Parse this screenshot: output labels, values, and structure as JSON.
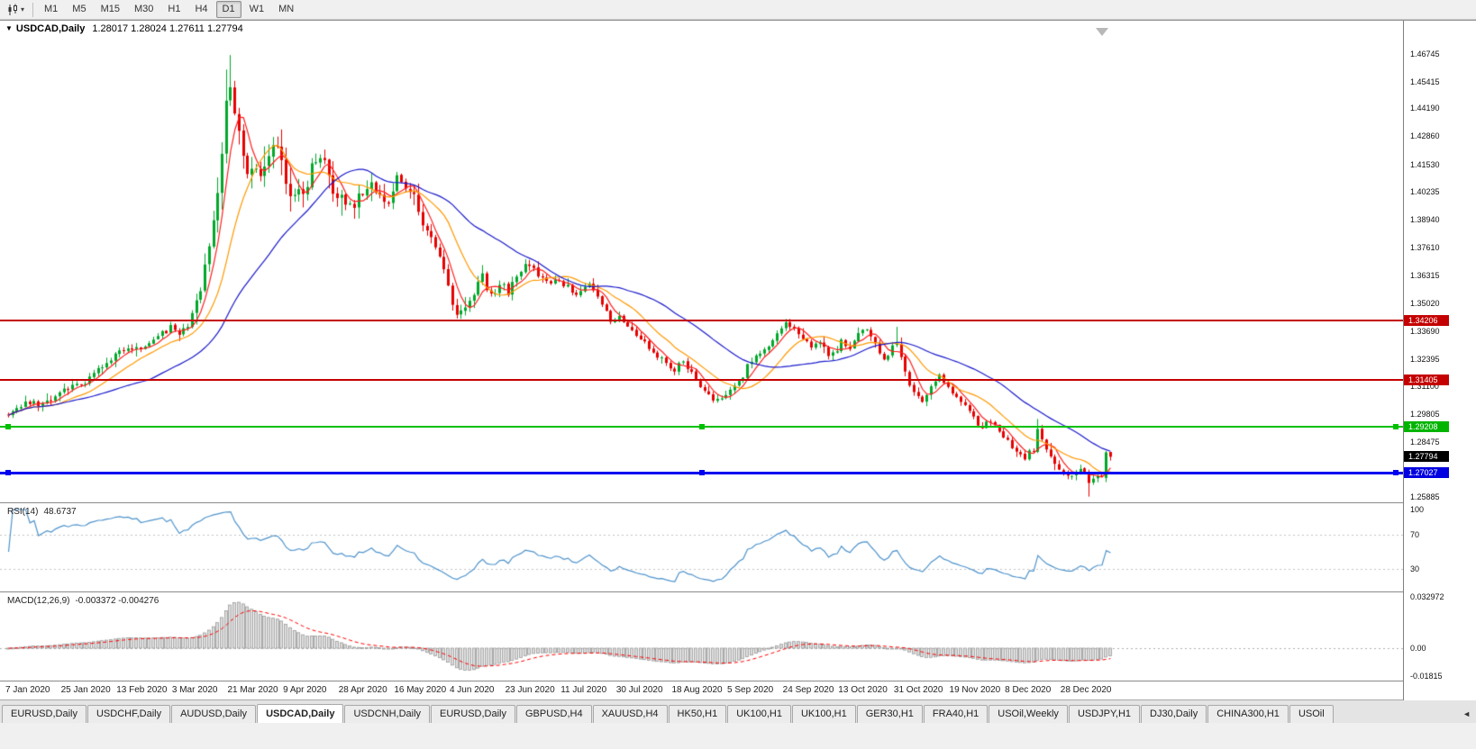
{
  "toolbar": {
    "dropdown_caret": "▾",
    "timeframes": [
      {
        "label": "M1",
        "active": false
      },
      {
        "label": "M5",
        "active": false
      },
      {
        "label": "M15",
        "active": false
      },
      {
        "label": "M30",
        "active": false
      },
      {
        "label": "H1",
        "active": false
      },
      {
        "label": "H4",
        "active": false
      },
      {
        "label": "D1",
        "active": true
      },
      {
        "label": "W1",
        "active": false
      },
      {
        "label": "MN",
        "active": false
      }
    ]
  },
  "window": {
    "title": "USDCAD,Daily",
    "ohlc": "1.28017 1.28024 1.27611 1.27794",
    "expand_glyph": "▼"
  },
  "price_scale": {
    "labels": [
      [
        "1.46745",
        1.46745
      ],
      [
        "1.45415",
        1.45415
      ],
      [
        "1.44190",
        1.4419
      ],
      [
        "1.42860",
        1.4286
      ],
      [
        "1.41530",
        1.4153
      ],
      [
        "1.40235",
        1.40235
      ],
      [
        "1.38940",
        1.3894
      ],
      [
        "1.37610",
        1.3761
      ],
      [
        "1.36315",
        1.36315
      ],
      [
        "1.35020",
        1.3502
      ],
      [
        "1.33690",
        1.3369
      ],
      [
        "1.32395",
        1.32395
      ],
      [
        "1.31100",
        1.311
      ],
      [
        "1.29805",
        1.29805
      ],
      [
        "1.28475",
        1.28475
      ],
      [
        "1.25885",
        1.25885
      ]
    ]
  },
  "tags": [
    {
      "text": "1.34206",
      "price": 1.34206,
      "bg": "#c40000"
    },
    {
      "text": "1.31405",
      "price": 1.31405,
      "bg": "#c40000"
    },
    {
      "text": "1.29208",
      "price": 1.29208,
      "bg": "#00b400"
    },
    {
      "text": "1.27794",
      "price": 1.27794,
      "bg": "#000000"
    },
    {
      "text": "1.27027",
      "price": 1.27027,
      "bg": "#0000e0"
    }
  ],
  "hlines": [
    {
      "price": 1.34206,
      "color": "#c40000",
      "w": 2,
      "handles": false
    },
    {
      "price": 1.31405,
      "color": "#c40000",
      "w": 2,
      "handles": false
    },
    {
      "price": 1.29208,
      "color": "#00c000",
      "w": 2,
      "handles": true
    },
    {
      "price": 1.27027,
      "color": "#0000f0",
      "w": 3,
      "handles": true
    }
  ],
  "rsi": {
    "name": "RSI(14)",
    "value": "48.6737",
    "color": "#4f94cd",
    "scale": [
      [
        "100",
        100
      ],
      [
        "70",
        70
      ],
      [
        "30",
        30
      ]
    ],
    "levels": [
      70,
      30
    ]
  },
  "macd": {
    "name": "MACD(12,26,9)",
    "values": "-0.003372 -0.004276",
    "scale": [
      [
        "0.032972",
        0.032972
      ],
      [
        "0.00",
        0
      ],
      [
        "-0.01815",
        -0.01815
      ]
    ]
  },
  "tabs": {
    "scroll_left_glyph": "◄",
    "items": [
      {
        "label": "EURUSD,Daily",
        "active": false
      },
      {
        "label": "USDCHF,Daily",
        "active": false
      },
      {
        "label": "AUDUSD,Daily",
        "active": false
      },
      {
        "label": "USDCAD,Daily",
        "active": true
      },
      {
        "label": "USDCNH,Daily",
        "active": false
      },
      {
        "label": "EURUSD,Daily",
        "active": false
      },
      {
        "label": "GBPUSD,H4",
        "active": false
      },
      {
        "label": "XAUUSD,H4",
        "active": false
      },
      {
        "label": "HK50,H1",
        "active": false
      },
      {
        "label": "UK100,H1",
        "active": false
      },
      {
        "label": "UK100,H1",
        "active": false
      },
      {
        "label": "GER30,H1",
        "active": false
      },
      {
        "label": "FRA40,H1",
        "active": false
      },
      {
        "label": "USOil,Weekly",
        "active": false
      },
      {
        "label": "USDJPY,H1",
        "active": false
      },
      {
        "label": "DJ30,Daily",
        "active": false
      },
      {
        "label": "CHINA300,H1",
        "active": false
      },
      {
        "label": "USOil",
        "active": false
      }
    ]
  },
  "chart_data": {
    "type": "candlestick",
    "symbol": "USDCAD",
    "timeframe": "Daily",
    "bars": 259,
    "y_range": [
      1.2565,
      1.4745
    ],
    "x_dates": [
      "7 Jan 2020",
      "25 Jan 2020",
      "13 Feb 2020",
      "3 Mar 2020",
      "21 Mar 2020",
      "9 Apr 2020",
      "28 Apr 2020",
      "16 May 2020",
      "4 Jun 2020",
      "23 Jun 2020",
      "11 Jul 2020",
      "30 Jul 2020",
      "18 Aug 2020",
      "5 Sep 2020",
      "24 Sep 2020",
      "13 Oct 2020",
      "31 Oct 2020",
      "19 Nov 2020",
      "8 Dec 2020",
      "28 Dec 2020"
    ],
    "bars_per_label": 13,
    "up_color": "#00a82a",
    "down_color": "#e60000",
    "seed": 7,
    "default_vol": 0.0028,
    "vol_zones": [
      [
        44,
        78,
        0.0085
      ],
      [
        79,
        102,
        0.0048
      ],
      [
        103,
        120,
        0.004
      ],
      [
        235,
        258,
        0.0026
      ]
    ],
    "waypoints": [
      [
        0,
        1.299
      ],
      [
        4,
        1.3035
      ],
      [
        8,
        1.302
      ],
      [
        13,
        1.3085
      ],
      [
        17,
        1.312
      ],
      [
        20,
        1.3165
      ],
      [
        23,
        1.322
      ],
      [
        26,
        1.3265
      ],
      [
        29,
        1.329
      ],
      [
        32,
        1.3305
      ],
      [
        35,
        1.334
      ],
      [
        38,
        1.3385
      ],
      [
        40,
        1.336
      ],
      [
        42,
        1.3395
      ],
      [
        44,
        1.35
      ],
      [
        46,
        1.365
      ],
      [
        48,
        1.385
      ],
      [
        50,
        1.418
      ],
      [
        51,
        1.442
      ],
      [
        52,
        1.456
      ],
      [
        53,
        1.438
      ],
      [
        54,
        1.429
      ],
      [
        56,
        1.412
      ],
      [
        58,
        1.418
      ],
      [
        60,
        1.411
      ],
      [
        62,
        1.422
      ],
      [
        63,
        1.4255
      ],
      [
        65,
        1.406
      ],
      [
        67,
        1.399
      ],
      [
        69,
        1.404
      ],
      [
        71,
        1.413
      ],
      [
        73,
        1.4175
      ],
      [
        75,
        1.409
      ],
      [
        78,
        1.3985
      ],
      [
        80,
        1.3945
      ],
      [
        82,
        1.3995
      ],
      [
        85,
        1.4065
      ],
      [
        87,
        1.403
      ],
      [
        89,
        1.3975
      ],
      [
        91,
        1.4105
      ],
      [
        93,
        1.4065
      ],
      [
        95,
        1.3995
      ],
      [
        97,
        1.388
      ],
      [
        99,
        1.38
      ],
      [
        101,
        1.371
      ],
      [
        103,
        1.3585
      ],
      [
        105,
        1.344
      ],
      [
        107,
        1.3475
      ],
      [
        109,
        1.3555
      ],
      [
        111,
        1.3625
      ],
      [
        113,
        1.3545
      ],
      [
        115,
        1.3585
      ],
      [
        117,
        1.356
      ],
      [
        119,
        1.3635
      ],
      [
        121,
        1.3685
      ],
      [
        123,
        1.3655
      ],
      [
        126,
        1.3605
      ],
      [
        130,
        1.359
      ],
      [
        133,
        1.355
      ],
      [
        136,
        1.358
      ],
      [
        139,
        1.3495
      ],
      [
        141,
        1.3425
      ],
      [
        143,
        1.343
      ],
      [
        146,
        1.3385
      ],
      [
        149,
        1.3315
      ],
      [
        152,
        1.3255
      ],
      [
        156,
        1.319
      ],
      [
        158,
        1.3225
      ],
      [
        160,
        1.3165
      ],
      [
        162,
        1.31
      ],
      [
        164,
        1.3065
      ],
      [
        166,
        1.304
      ],
      [
        168,
        1.3075
      ],
      [
        170,
        1.312
      ],
      [
        172,
        1.3165
      ],
      [
        174,
        1.3235
      ],
      [
        176,
        1.326
      ],
      [
        178,
        1.33
      ],
      [
        180,
        1.337
      ],
      [
        182,
        1.3415
      ],
      [
        184,
        1.3375
      ],
      [
        186,
        1.3325
      ],
      [
        188,
        1.329
      ],
      [
        190,
        1.332
      ],
      [
        192,
        1.326
      ],
      [
        194,
        1.329
      ],
      [
        195,
        1.3315
      ],
      [
        197,
        1.329
      ],
      [
        199,
        1.3355
      ],
      [
        201,
        1.3385
      ],
      [
        203,
        1.3325
      ],
      [
        205,
        1.3235
      ],
      [
        207,
        1.3295
      ],
      [
        208,
        1.3325
      ],
      [
        210,
        1.3165
      ],
      [
        212,
        1.3085
      ],
      [
        214,
        1.3035
      ],
      [
        216,
        1.3125
      ],
      [
        218,
        1.316
      ],
      [
        220,
        1.3095
      ],
      [
        222,
        1.3075
      ],
      [
        224,
        1.3015
      ],
      [
        226,
        1.296
      ],
      [
        228,
        1.2915
      ],
      [
        230,
        1.2945
      ],
      [
        232,
        1.2895
      ],
      [
        234,
        1.2855
      ],
      [
        236,
        1.2805
      ],
      [
        238,
        1.2775
      ],
      [
        240,
        1.2815
      ],
      [
        241,
        1.2905
      ],
      [
        242,
        1.287
      ],
      [
        243,
        1.2805
      ],
      [
        245,
        1.2745
      ],
      [
        247,
        1.2705
      ],
      [
        249,
        1.2685
      ],
      [
        251,
        1.2725
      ],
      [
        253,
        1.2665
      ],
      [
        255,
        1.2685
      ],
      [
        256,
        1.268
      ],
      [
        257,
        1.28
      ],
      [
        258,
        1.27794
      ]
    ],
    "forced_bars": {
      "51": {
        "h": 1.46
      },
      "52": {
        "h": 1.4668
      },
      "63": {
        "h": 1.4285
      },
      "208": {
        "h": 1.339
      },
      "241": {
        "h": 1.2957
      },
      "253": {
        "l": 1.2592
      },
      "257": {
        "o": 1.268,
        "c": 1.28,
        "l": 1.266,
        "h": 1.2806
      },
      "258": {
        "o": 1.28017,
        "h": 1.28024,
        "l": 1.27611,
        "c": 1.27794
      }
    },
    "moving_averages": [
      {
        "period": 5,
        "color": "#ff1e1e"
      },
      {
        "period": 13,
        "color": "#ff9900"
      },
      {
        "period": 34,
        "color": "#1a1acd"
      }
    ],
    "indicators": [
      {
        "name": "RSI",
        "period": 14,
        "current": 48.6737
      },
      {
        "name": "MACD",
        "fast": 12,
        "slow": 26,
        "signal": 9,
        "current_main": -0.003372,
        "current_signal": -0.004276
      }
    ],
    "horizontal_lines": [
      1.34206,
      1.31405,
      1.29208,
      1.27027
    ],
    "current_price": 1.27794
  }
}
